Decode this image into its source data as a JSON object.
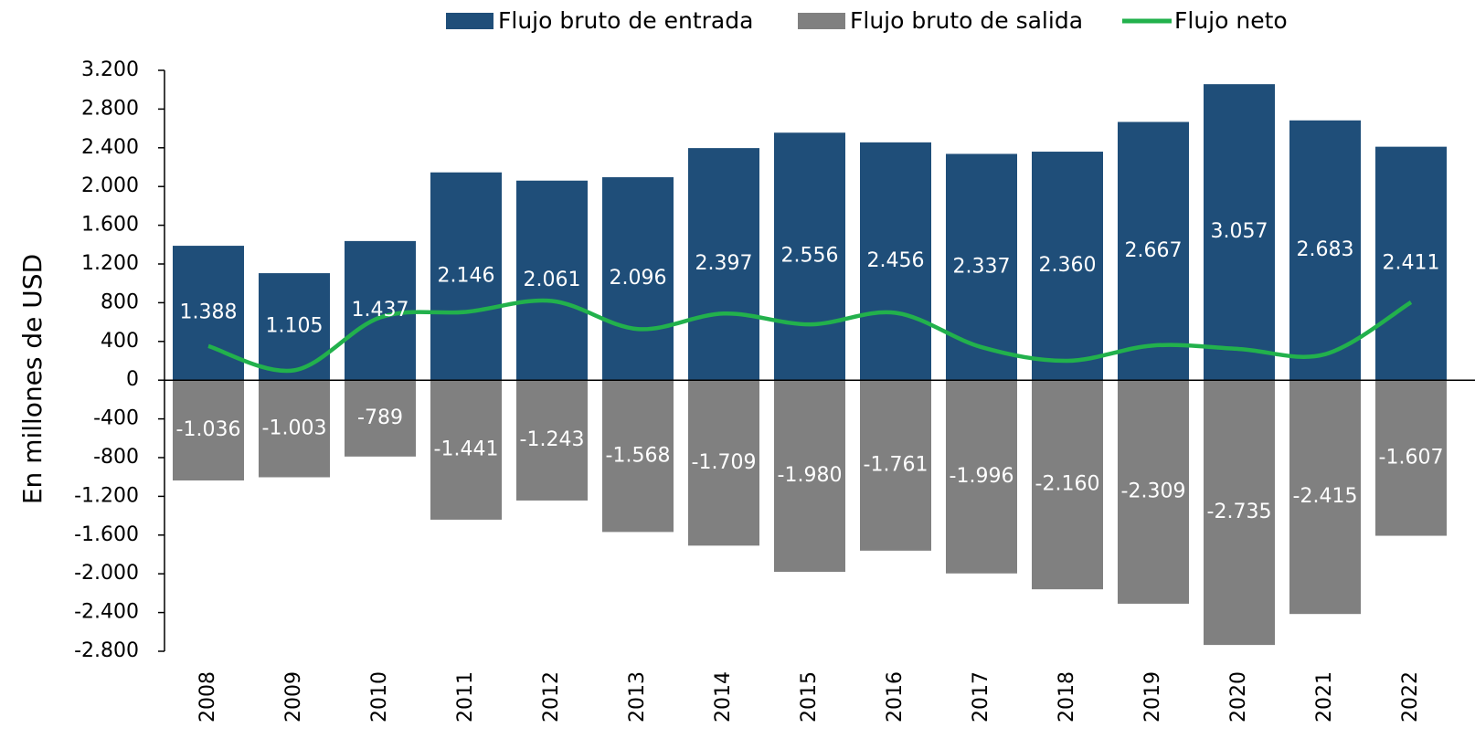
{
  "chart_data": {
    "type": "bar_line",
    "y_axis_label": "En millones de USD",
    "categories": [
      "2008",
      "2009",
      "2010",
      "2011",
      "2012",
      "2013",
      "2014",
      "2015",
      "2016",
      "2017",
      "2018",
      "2019",
      "2020",
      "2021",
      "2022"
    ],
    "series": [
      {
        "name": "Flujo bruto de entrada",
        "type": "bar",
        "color": "#1f4e79",
        "values": [
          1388,
          1105,
          1437,
          2146,
          2061,
          2096,
          2397,
          2556,
          2456,
          2337,
          2360,
          2667,
          3057,
          2683,
          2411
        ],
        "value_labels": [
          "1.388",
          "1.105",
          "1.437",
          "2.146",
          "2.061",
          "2.096",
          "2.397",
          "2.556",
          "2.456",
          "2.337",
          "2.360",
          "2.667",
          "3.057",
          "2.683",
          "2.411"
        ]
      },
      {
        "name": "Flujo bruto de salida",
        "type": "bar",
        "color": "#808080",
        "values": [
          -1036,
          -1003,
          -789,
          -1441,
          -1243,
          -1568,
          -1709,
          -1980,
          -1761,
          -1996,
          -2160,
          -2309,
          -2735,
          -2415,
          -1607
        ],
        "value_labels": [
          "-1.036",
          "-1.003",
          "-789",
          "-1.441",
          "-1.243",
          "-1.568",
          "-1.709",
          "-1.980",
          "-1.761",
          "-1.996",
          "-2.160",
          "-2.309",
          "-2.735",
          "-2.415",
          "-1.607"
        ]
      },
      {
        "name": "Flujo neto",
        "type": "line",
        "color": "#22b14c",
        "values": [
          352,
          102,
          648,
          705,
          818,
          528,
          688,
          576,
          695,
          341,
          200,
          358,
          322,
          268,
          804
        ]
      }
    ],
    "ylim": [
      -2800,
      3200
    ],
    "yticks": [
      {
        "value": -2800,
        "label": "-2.800"
      },
      {
        "value": -2400,
        "label": "-2.400"
      },
      {
        "value": -2000,
        "label": "-2.000"
      },
      {
        "value": -1600,
        "label": "-1.600"
      },
      {
        "value": -1200,
        "label": "-1.200"
      },
      -800,
      -400,
      0,
      400,
      800,
      {
        "value": 1200,
        "label": "1.200"
      },
      {
        "value": 1600,
        "label": "1.600"
      },
      {
        "value": 2000,
        "label": "2.000"
      },
      {
        "value": 2400,
        "label": "2.400"
      },
      {
        "value": 2800,
        "label": "2.800"
      },
      {
        "value": 3200,
        "label": "3.200"
      }
    ],
    "legend": "top"
  }
}
